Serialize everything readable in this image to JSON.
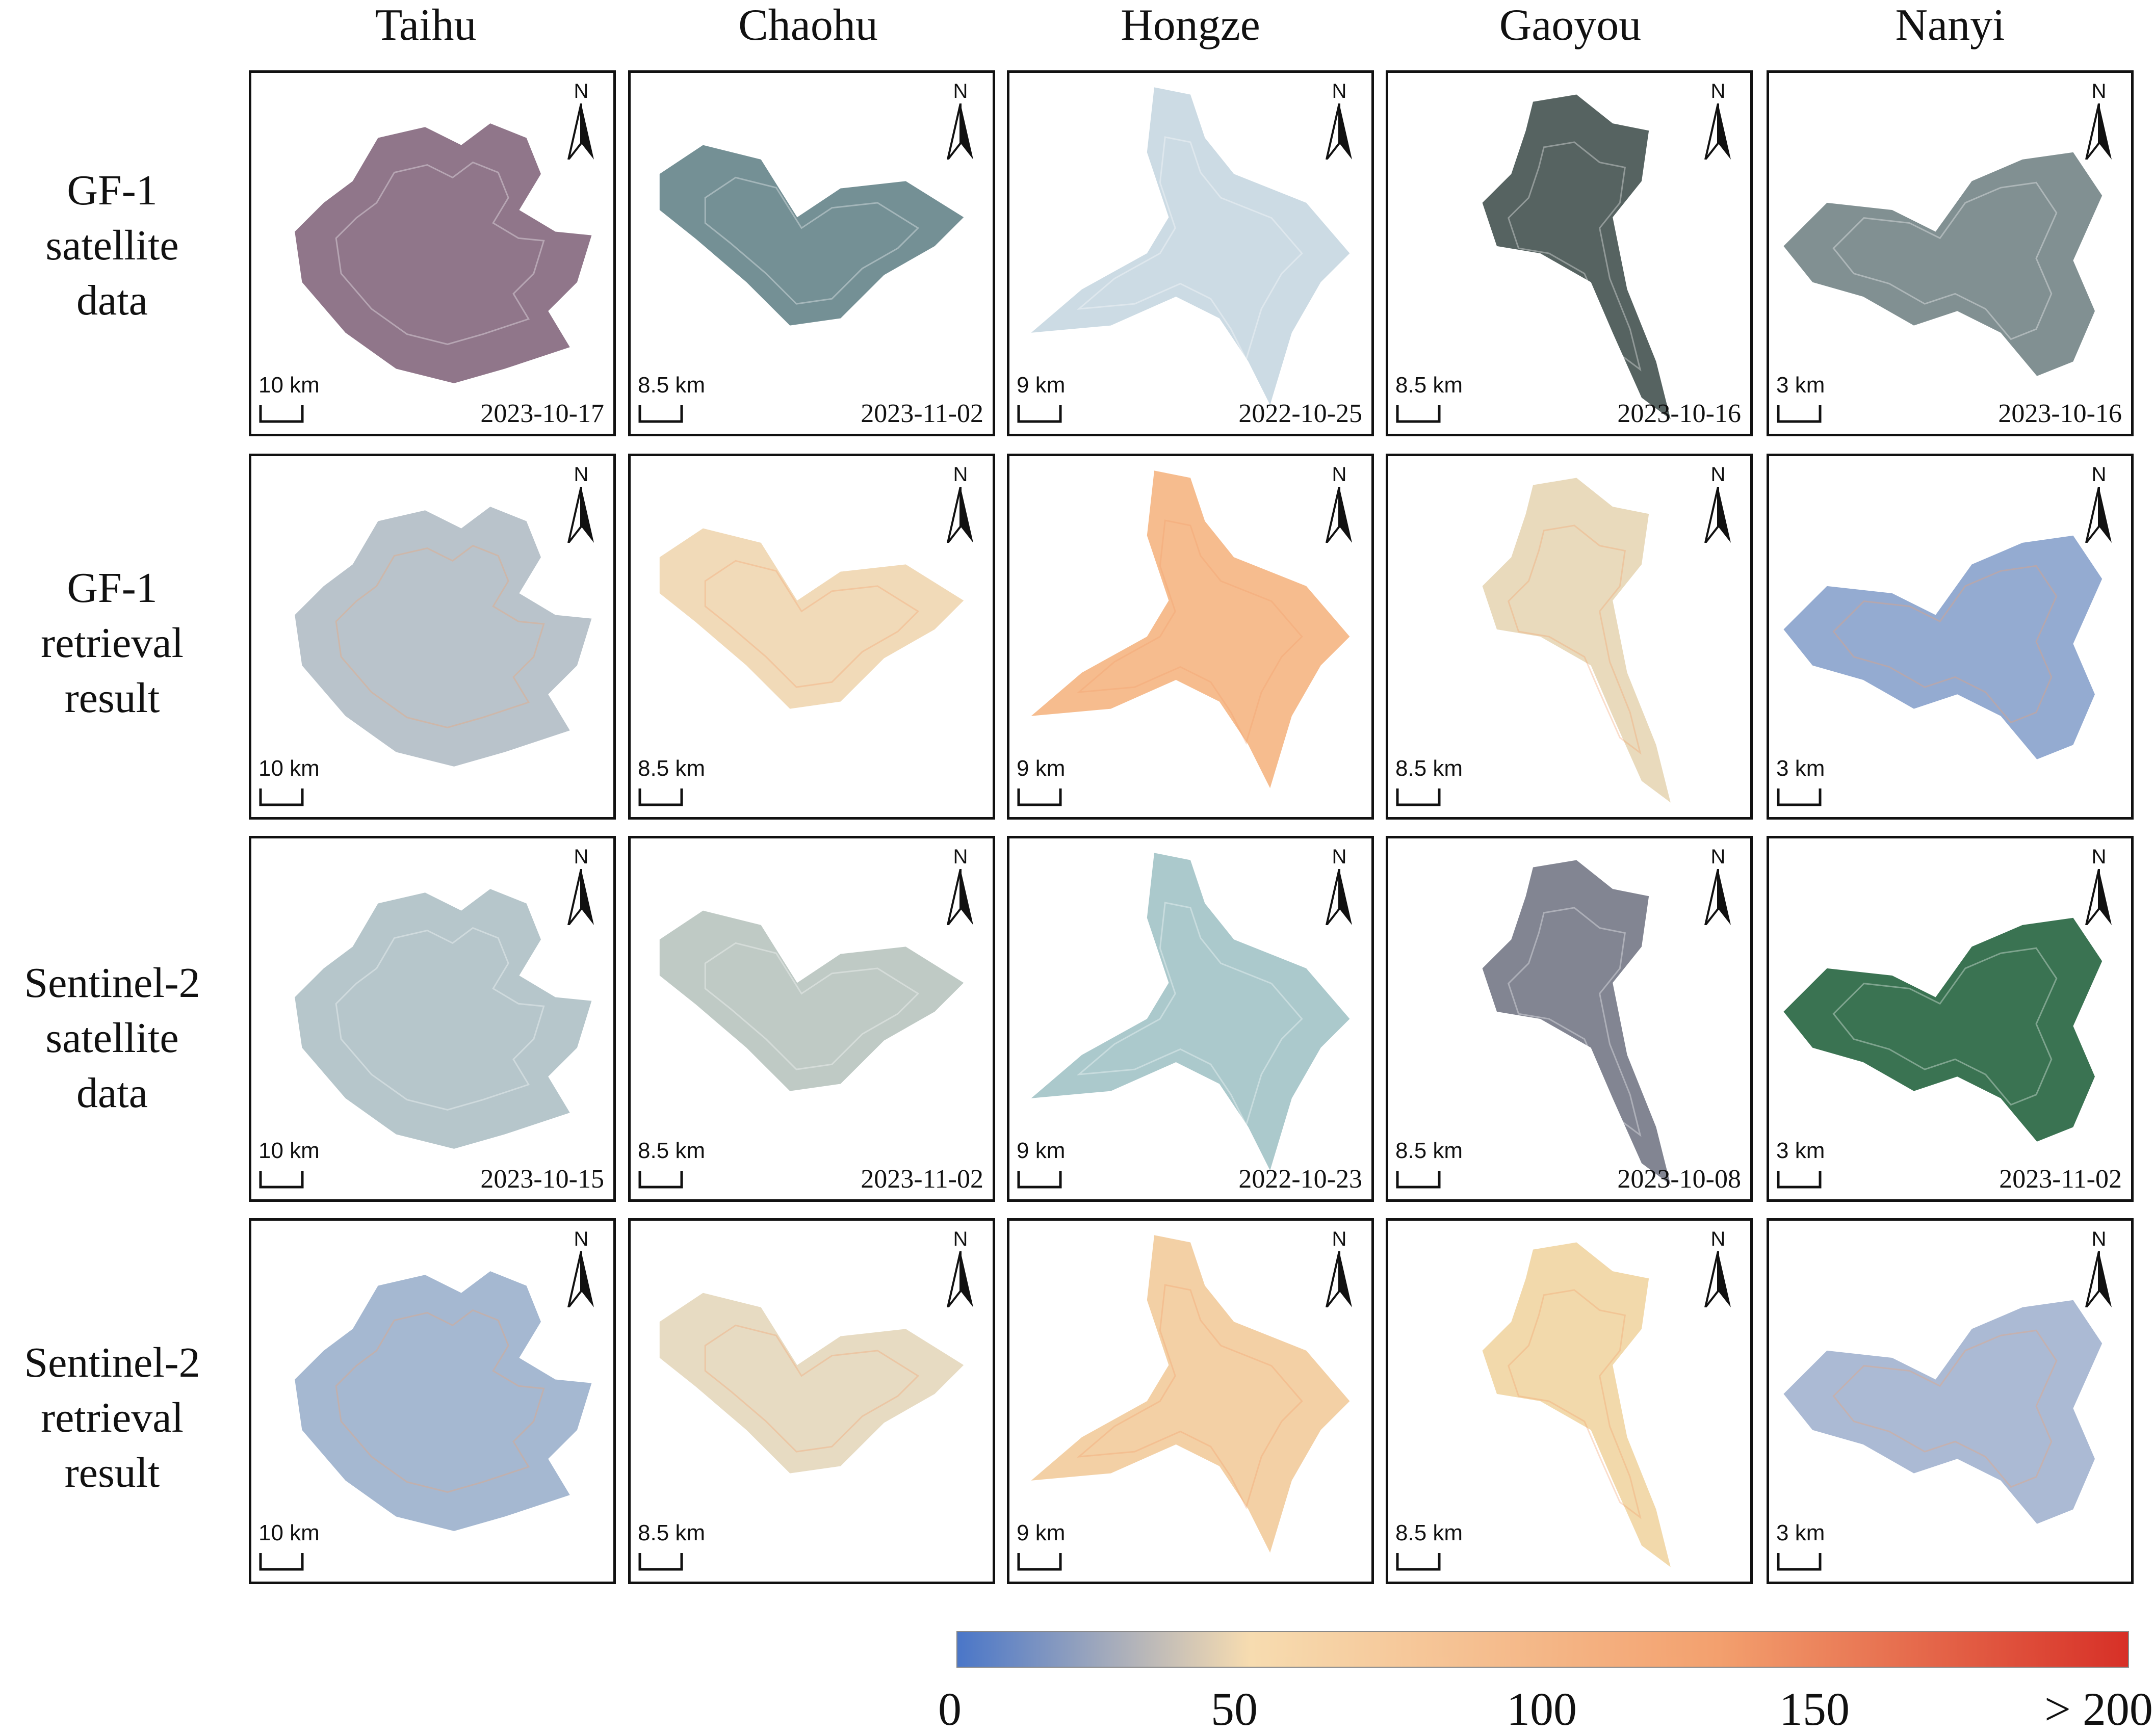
{
  "columns": [
    "Taihu",
    "Chaohu",
    "Hongze",
    "Gaoyou",
    "Nanyi"
  ],
  "rows": [
    {
      "lines": [
        "GF-1",
        "satellite",
        "data"
      ],
      "kind": "rgb"
    },
    {
      "lines": [
        "GF-1",
        "retrieval",
        "result"
      ],
      "kind": "retrieval"
    },
    {
      "lines": [
        "Sentinel-2",
        "satellite",
        "data"
      ],
      "kind": "rgb"
    },
    {
      "lines": [
        "Sentinel-2",
        "retrieval",
        "result"
      ],
      "kind": "retrieval"
    }
  ],
  "north_label": "N",
  "scale_bars": [
    "10 km",
    "8.5 km",
    "9 km",
    "8.5 km",
    "3 km"
  ],
  "dates": {
    "gf1": [
      "2023-10-17",
      "2023-11-02",
      "2022-10-25",
      "2023-10-16",
      "2023-10-16"
    ],
    "sentinel2": [
      "2023-10-15",
      "2023-11-02",
      "2022-10-23",
      "2023-10-08",
      "2023-11-02"
    ]
  },
  "legend": {
    "ticks": [
      "0",
      "50",
      "100",
      "150",
      "> 200"
    ],
    "tick_values": [
      0,
      50,
      100,
      150,
      200
    ],
    "colors": [
      "#4a76c8",
      "#f7dcb0",
      "#f3a06e",
      "#d73027"
    ]
  }
}
